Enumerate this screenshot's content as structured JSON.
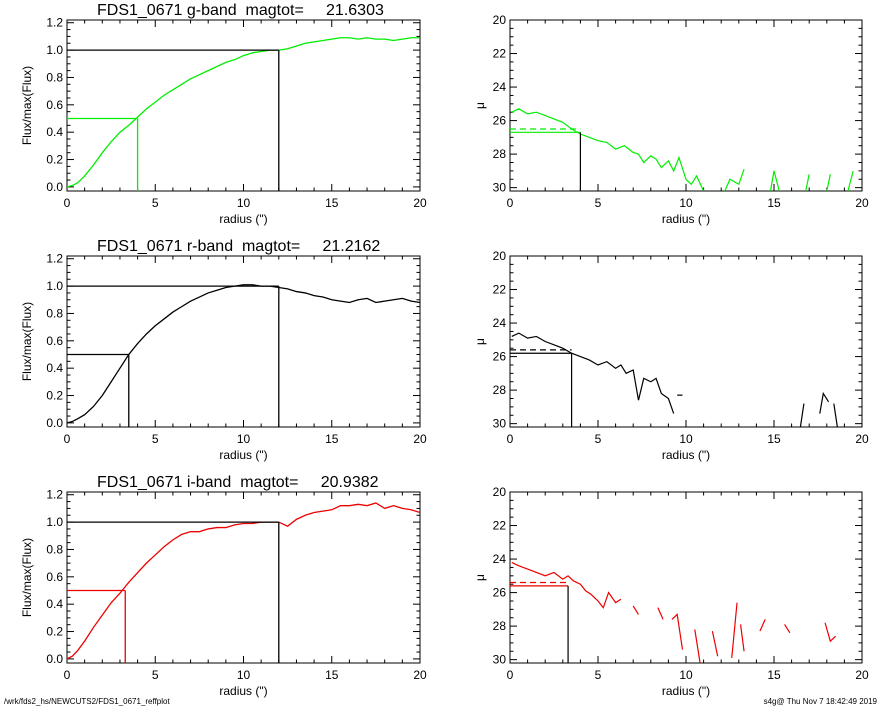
{
  "footer": {
    "left": "/wrk/fds2_hs/NEWCUTS2/FDS1_0671_reffplot",
    "right": "s4g@  Thu Nov  7 18:42:49 2019"
  },
  "colors": {
    "g": "#00ee00",
    "r": "#000000",
    "i": "#ee0000"
  },
  "chart_data": [
    {
      "type": "line",
      "band": "g",
      "title": "FDS1_0671 g-band  magtot=     21.6303",
      "xlabel": "radius (\")",
      "ylabel": "Flux/max(Flux)",
      "xlim": [
        0,
        20
      ],
      "ylim": [
        -0.03,
        1.22
      ],
      "xticks": [
        0,
        5,
        10,
        15,
        20
      ],
      "yticks": [
        0.0,
        0.2,
        0.4,
        0.6,
        0.8,
        1.0,
        1.2
      ],
      "ytick_labels": [
        "0.0",
        "0.2",
        "0.4",
        "0.6",
        "0.8",
        "1.0",
        "1.2"
      ],
      "x": [
        0,
        0.3,
        0.6,
        1,
        1.5,
        2,
        2.5,
        3,
        3.5,
        4,
        4.5,
        5,
        5.5,
        6,
        6.5,
        7,
        7.5,
        8,
        8.5,
        9,
        9.5,
        10,
        10.5,
        11,
        11.5,
        12,
        12.5,
        13,
        13.5,
        14,
        14.5,
        15,
        15.5,
        16,
        16.5,
        17,
        17.5,
        18,
        18.5,
        19,
        19.5,
        20
      ],
      "y": [
        0.0,
        0.01,
        0.03,
        0.08,
        0.16,
        0.25,
        0.33,
        0.4,
        0.45,
        0.51,
        0.57,
        0.62,
        0.67,
        0.71,
        0.75,
        0.79,
        0.82,
        0.85,
        0.88,
        0.91,
        0.93,
        0.96,
        0.98,
        0.99,
        1.0,
        1.0,
        1.01,
        1.03,
        1.05,
        1.06,
        1.07,
        1.08,
        1.09,
        1.09,
        1.08,
        1.09,
        1.08,
        1.08,
        1.07,
        1.08,
        1.09,
        1.09
      ],
      "half_radius": 4.0,
      "total_radius": 12.0
    },
    {
      "type": "line",
      "band": "g",
      "xlabel": "radius (\")",
      "ylabel": "μ",
      "xlim": [
        0,
        20
      ],
      "ylim": [
        30.2,
        20
      ],
      "y_inverted": true,
      "xticks": [
        0,
        5,
        10,
        15,
        20
      ],
      "yticks": [
        20,
        22,
        24,
        26,
        28,
        30
      ],
      "segments": [
        {
          "x": [
            0.1,
            0.5,
            1,
            1.5,
            2,
            2.5,
            3,
            3.5,
            4,
            4.5,
            5,
            5.5,
            6,
            6.5,
            7,
            7.3,
            7.6,
            8,
            8.3,
            8.6,
            9,
            9.3,
            9.6,
            10,
            10.3,
            10.6,
            11
          ],
          "y": [
            25.5,
            25.3,
            25.6,
            25.5,
            25.7,
            25.9,
            26.1,
            26.5,
            26.8,
            27.0,
            27.2,
            27.3,
            27.7,
            27.5,
            27.9,
            28.0,
            28.5,
            28.1,
            28.3,
            28.8,
            28.4,
            29.0,
            28.2,
            29.5,
            29.8,
            29.3,
            30.2
          ]
        },
        {
          "x": [
            12.2,
            12.5,
            13,
            13.3
          ],
          "y": [
            30.2,
            29.5,
            29.8,
            28.9
          ]
        },
        {
          "x": [
            14.8,
            15.0,
            15.3
          ],
          "y": [
            30.2,
            29.0,
            30.2
          ]
        },
        {
          "x": [
            16.8,
            17.0
          ],
          "y": [
            30.2,
            29.2
          ]
        },
        {
          "x": [
            18.0,
            18.2
          ],
          "y": [
            30.2,
            29.2
          ]
        },
        {
          "x": [
            19.2,
            19.5
          ],
          "y": [
            30.2,
            29.0
          ]
        }
      ],
      "mu_solid": 26.7,
      "mu_dash": 26.5,
      "half_radius": 4.0
    },
    {
      "type": "line",
      "band": "r",
      "title": "FDS1_0671 r-band  magtot=     21.2162",
      "xlabel": "radius (\")",
      "ylabel": "Flux/max(Flux)",
      "xlim": [
        0,
        20
      ],
      "ylim": [
        -0.03,
        1.22
      ],
      "xticks": [
        0,
        5,
        10,
        15,
        20
      ],
      "yticks": [
        0.0,
        0.2,
        0.4,
        0.6,
        0.8,
        1.0,
        1.2
      ],
      "ytick_labels": [
        "0.0",
        "0.2",
        "0.4",
        "0.6",
        "0.8",
        "1.0",
        "1.2"
      ],
      "x": [
        0,
        0.3,
        0.6,
        1,
        1.5,
        2,
        2.5,
        3,
        3.5,
        4,
        4.5,
        5,
        5.5,
        6,
        6.5,
        7,
        7.5,
        8,
        8.5,
        9,
        9.5,
        10,
        10.5,
        11,
        11.5,
        12,
        12.5,
        13,
        13.5,
        14,
        14.5,
        15,
        15.5,
        16,
        16.5,
        17,
        17.5,
        18,
        18.5,
        19,
        19.5,
        20
      ],
      "y": [
        0.0,
        0.01,
        0.03,
        0.06,
        0.12,
        0.2,
        0.3,
        0.4,
        0.5,
        0.58,
        0.65,
        0.71,
        0.76,
        0.81,
        0.85,
        0.89,
        0.92,
        0.95,
        0.97,
        0.99,
        1.0,
        1.01,
        1.01,
        1.0,
        1.0,
        0.99,
        0.98,
        0.96,
        0.95,
        0.93,
        0.92,
        0.9,
        0.89,
        0.88,
        0.9,
        0.91,
        0.88,
        0.89,
        0.9,
        0.91,
        0.89,
        0.88
      ],
      "half_radius": 3.5,
      "total_radius": 12.0
    },
    {
      "type": "line",
      "band": "r",
      "xlabel": "radius (\")",
      "ylabel": "μ",
      "xlim": [
        0,
        20
      ],
      "ylim": [
        30.2,
        20
      ],
      "y_inverted": true,
      "xticks": [
        0,
        5,
        10,
        15,
        20
      ],
      "yticks": [
        20,
        22,
        24,
        26,
        28,
        30
      ],
      "segments": [
        {
          "x": [
            0.1,
            0.5,
            1,
            1.5,
            2,
            2.5,
            3,
            3.5,
            4,
            4.5,
            5,
            5.5,
            6,
            6.3,
            6.6,
            7,
            7.3,
            7.6,
            8,
            8.3,
            8.6,
            9,
            9.3
          ],
          "y": [
            24.8,
            24.6,
            24.9,
            24.8,
            25.1,
            25.3,
            25.5,
            25.8,
            26.0,
            26.2,
            26.5,
            26.3,
            26.7,
            26.5,
            27.0,
            26.8,
            28.6,
            27.3,
            27.5,
            27.3,
            28.2,
            28.5,
            29.4
          ]
        },
        {
          "x": [
            9.5,
            9.8
          ],
          "y": [
            28.3,
            28.3
          ]
        },
        {
          "x": [
            16.5,
            16.7
          ],
          "y": [
            30.2,
            28.8
          ]
        },
        {
          "x": [
            17.6,
            17.8,
            18.1
          ],
          "y": [
            29.4,
            28.2,
            28.7
          ]
        },
        {
          "x": [
            18.4,
            18.6
          ],
          "y": [
            28.8,
            30.2
          ]
        }
      ],
      "mu_solid": 25.8,
      "mu_dash": 25.6,
      "half_radius": 3.5
    },
    {
      "type": "line",
      "band": "i",
      "title": "FDS1_0671 i-band  magtot=     20.9382",
      "xlabel": "radius (\")",
      "ylabel": "Flux/max(Flux)",
      "xlim": [
        0,
        20
      ],
      "ylim": [
        -0.03,
        1.22
      ],
      "xticks": [
        0,
        5,
        10,
        15,
        20
      ],
      "yticks": [
        0.0,
        0.2,
        0.4,
        0.6,
        0.8,
        1.0,
        1.2
      ],
      "ytick_labels": [
        "0.0",
        "0.2",
        "0.4",
        "0.6",
        "0.8",
        "1.0",
        "1.2"
      ],
      "x": [
        0,
        0.3,
        0.6,
        1,
        1.5,
        2,
        2.5,
        3,
        3.5,
        4,
        4.5,
        5,
        5.5,
        6,
        6.5,
        7,
        7.5,
        8,
        8.5,
        9,
        9.5,
        10,
        10.5,
        11,
        11.5,
        12,
        12.5,
        13,
        13.5,
        14,
        14.5,
        15,
        15.5,
        16,
        16.5,
        17,
        17.5,
        18,
        18.5,
        19,
        19.5,
        20
      ],
      "y": [
        0.0,
        0.02,
        0.06,
        0.13,
        0.23,
        0.32,
        0.41,
        0.48,
        0.56,
        0.63,
        0.7,
        0.76,
        0.82,
        0.87,
        0.91,
        0.93,
        0.93,
        0.95,
        0.96,
        0.96,
        0.98,
        0.99,
        0.99,
        1.0,
        1.0,
        1.0,
        0.97,
        1.02,
        1.05,
        1.07,
        1.08,
        1.09,
        1.12,
        1.12,
        1.13,
        1.12,
        1.14,
        1.1,
        1.12,
        1.1,
        1.09,
        1.07
      ],
      "half_radius": 3.3,
      "total_radius": 12.0
    },
    {
      "type": "line",
      "band": "i",
      "xlabel": "radius (\")",
      "ylabel": "μ",
      "xlim": [
        0,
        20
      ],
      "ylim": [
        30.2,
        20
      ],
      "y_inverted": true,
      "xticks": [
        0,
        5,
        10,
        15,
        20
      ],
      "yticks": [
        20,
        22,
        24,
        26,
        28,
        30
      ],
      "segments": [
        {
          "x": [
            0.1,
            0.5,
            1,
            1.5,
            2,
            2.5,
            3,
            3.3,
            3.6,
            4,
            4.3,
            4.6,
            5,
            5.3,
            5.6,
            6,
            6.3
          ],
          "y": [
            24.2,
            24.4,
            24.6,
            24.8,
            25.0,
            24.8,
            25.2,
            25.0,
            25.3,
            25.5,
            25.9,
            26.1,
            26.5,
            26.9,
            26.0,
            26.6,
            26.4
          ]
        },
        {
          "x": [
            7.0,
            7.3
          ],
          "y": [
            26.8,
            27.3
          ]
        },
        {
          "x": [
            8.4,
            8.7
          ],
          "y": [
            26.9,
            27.6
          ]
        },
        {
          "x": [
            9.2,
            9.5,
            9.8
          ],
          "y": [
            27.6,
            27.3,
            29.4
          ]
        },
        {
          "x": [
            10.5,
            10.8
          ],
          "y": [
            28.2,
            30.2
          ]
        },
        {
          "x": [
            11.5,
            11.8
          ],
          "y": [
            28.3,
            29.8
          ]
        },
        {
          "x": [
            12.6,
            12.9
          ],
          "y": [
            29.9,
            26.6
          ]
        },
        {
          "x": [
            13.1,
            13.3
          ],
          "y": [
            27.9,
            29.5
          ]
        },
        {
          "x": [
            14.2,
            14.5
          ],
          "y": [
            28.3,
            27.6
          ]
        },
        {
          "x": [
            15.6,
            15.9
          ],
          "y": [
            27.9,
            28.4
          ]
        },
        {
          "x": [
            17.9,
            18.2,
            18.5
          ],
          "y": [
            27.8,
            28.9,
            28.6
          ]
        }
      ],
      "mu_solid": 25.6,
      "mu_dash": 25.4,
      "half_radius": 3.3
    }
  ]
}
